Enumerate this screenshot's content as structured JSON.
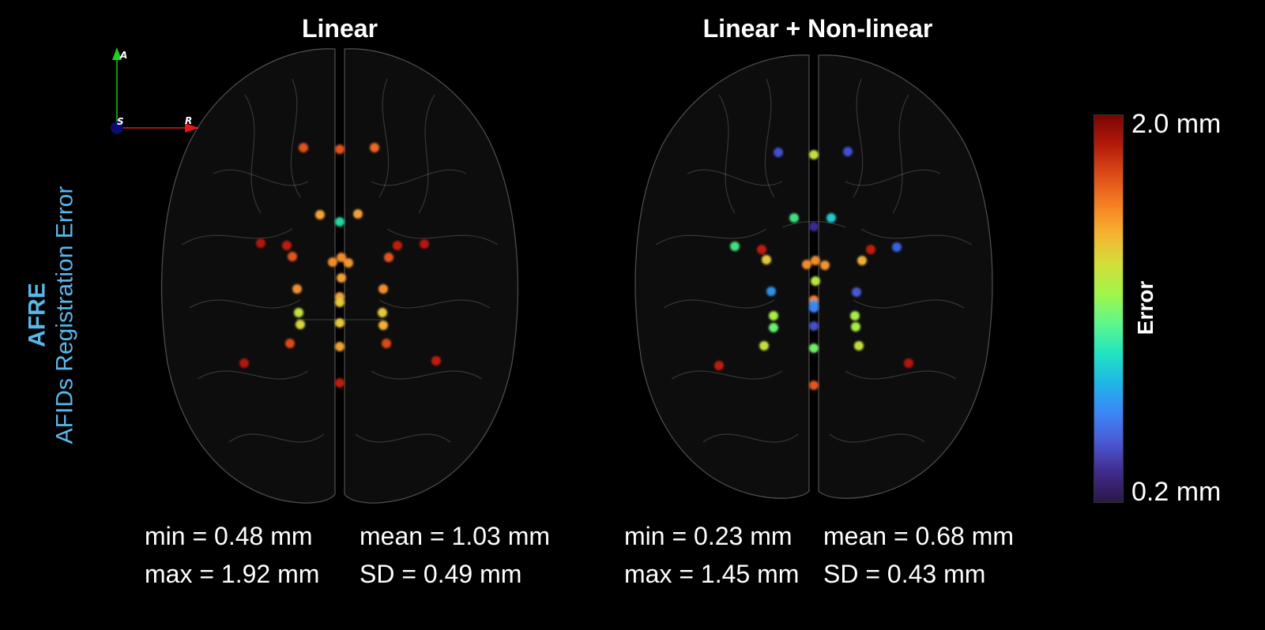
{
  "side": {
    "title": "AFRE",
    "subtitle": "AFIDs Registration Error"
  },
  "panels": [
    {
      "title": "Linear",
      "stats": {
        "min": "min = 0.48 mm",
        "max": "max = 1.92 mm",
        "mean": "mean = 1.03 mm",
        "sd": "SD = 0.49 mm"
      }
    },
    {
      "title": "Linear + Non-linear",
      "stats": {
        "min": "min = 0.23 mm",
        "max": "max = 1.45 mm",
        "mean": "mean = 0.68 mm",
        "sd": "SD = 0.43 mm"
      }
    }
  ],
  "colorbar": {
    "max_label": "2.0 mm",
    "min_label": "0.2 mm",
    "label": "Error"
  },
  "orientation": {
    "anterior": "A",
    "superior": "S",
    "right": "R"
  },
  "colors": {
    "accent": "#5bb7ea",
    "background": "#000000"
  }
}
